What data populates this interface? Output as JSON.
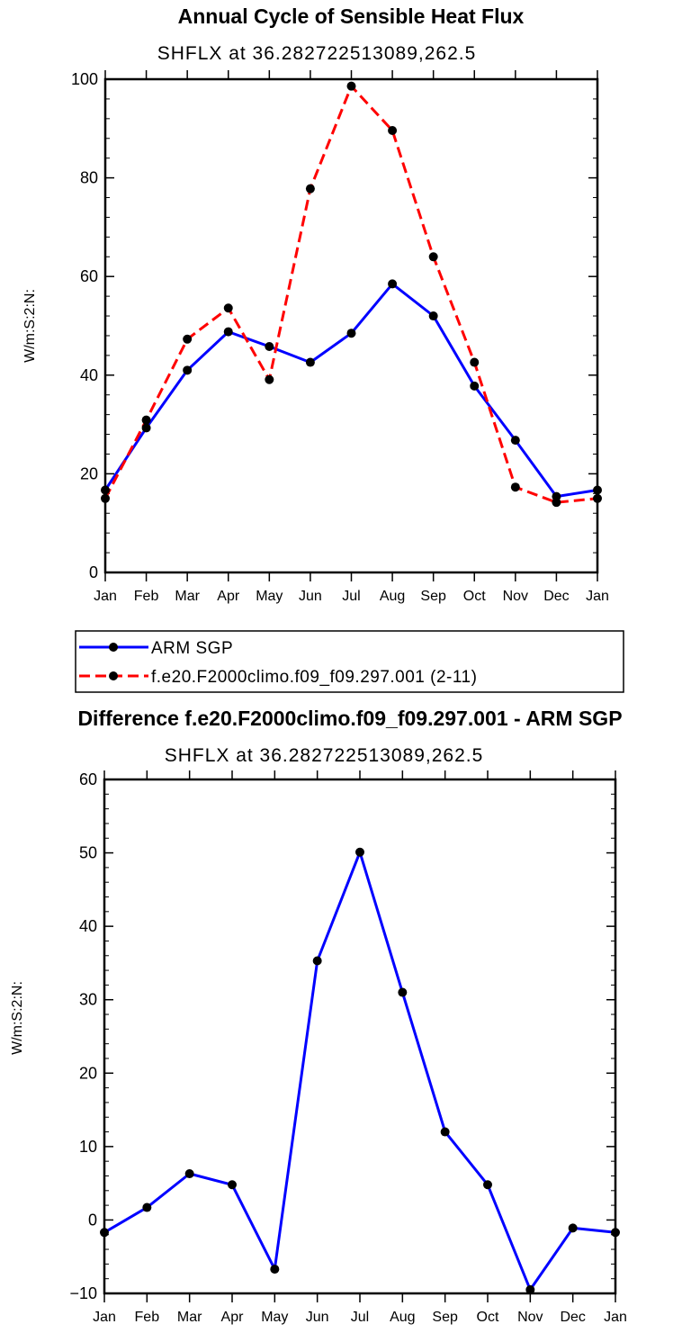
{
  "chart_data": [
    {
      "type": "line",
      "title": "Annual Cycle of Sensible Heat Flux",
      "subtitle": "SHFLX at 36.282722513089,262.5",
      "ylabel": "W/m:S:2:N:",
      "xlabel": "",
      "categories": [
        "Jan",
        "Feb",
        "Mar",
        "Apr",
        "May",
        "Jun",
        "Jul",
        "Aug",
        "Sep",
        "Oct",
        "Nov",
        "Dec",
        "Jan"
      ],
      "ylim": [
        0,
        100
      ],
      "yticks": [
        0,
        20,
        40,
        60,
        80,
        100
      ],
      "grid": false,
      "legend_position": "below",
      "series": [
        {
          "name": "ARM SGP",
          "color": "#0000ff",
          "dash": "solid",
          "values": [
            16.7,
            29.3,
            41.0,
            48.8,
            45.8,
            42.6,
            48.5,
            58.5,
            52.0,
            37.8,
            26.8,
            15.4,
            16.7
          ]
        },
        {
          "name": "f.e20.F2000climo.f09_f09.297.001 (2-11)",
          "color": "#ff0000",
          "dash": "dashed",
          "values": [
            15.0,
            30.9,
            47.3,
            53.6,
            39.1,
            77.8,
            98.6,
            89.6,
            64.0,
            42.6,
            17.3,
            14.2,
            15.0
          ]
        }
      ]
    },
    {
      "type": "line",
      "title": "Difference f.e20.F2000climo.f09_f09.297.001 - ARM SGP",
      "subtitle": "SHFLX at 36.282722513089,262.5",
      "ylabel": "W/m:S:2:N:",
      "xlabel": "",
      "categories": [
        "Jan",
        "Feb",
        "Mar",
        "Apr",
        "May",
        "Jun",
        "Jul",
        "Aug",
        "Sep",
        "Oct",
        "Nov",
        "Dec",
        "Jan"
      ],
      "ylim": [
        -10,
        60
      ],
      "yticks": [
        -10,
        0,
        10,
        20,
        30,
        40,
        50,
        60
      ],
      "grid": false,
      "series": [
        {
          "color": "#0000ff",
          "dash": "solid",
          "values": [
            -1.7,
            1.7,
            6.3,
            4.8,
            -6.7,
            35.3,
            50.1,
            31.0,
            12.0,
            4.8,
            -9.5,
            -1.1,
            -1.7
          ]
        }
      ]
    }
  ]
}
